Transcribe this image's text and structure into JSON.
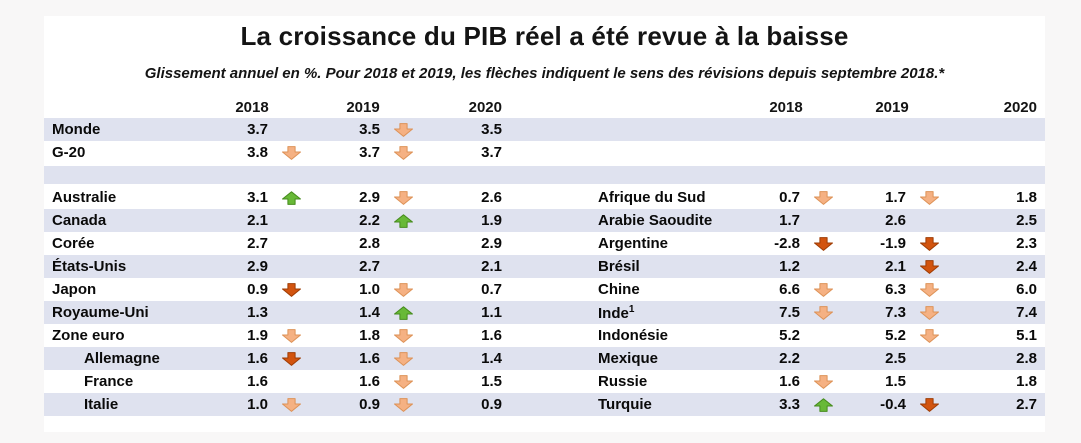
{
  "chart_data": {
    "type": "table",
    "title": "La croissance du PIB réel a été revue à la baisse",
    "subtitle": "Glissement annuel en %. Pour 2018 et 2019, les flèches indiquent le sens des révisions depuis septembre 2018.*",
    "columns": [
      "2018",
      "2019",
      "2020"
    ],
    "row_shade_color": "#dfe2ef",
    "arrow_styles": {
      "up": {
        "fill": "#68b937",
        "stroke": "#468c1d"
      },
      "down": {
        "fill": "#f5b183",
        "stroke": "#dd9257"
      },
      "down_strong": {
        "fill": "#d2540f",
        "stroke": "#9e3c04"
      }
    },
    "rows": [
      {
        "shaded": true,
        "left": {
          "label": "Monde",
          "values": [
            "3.7",
            "3.5",
            "3.5"
          ],
          "arrows": [
            null,
            "down",
            null
          ]
        },
        "right": null
      },
      {
        "shaded": false,
        "left": {
          "label": "G-20",
          "values": [
            "3.8",
            "3.7",
            "3.7"
          ],
          "arrows": [
            "down",
            "down",
            null
          ]
        },
        "right": null
      },
      {
        "shaded": true,
        "spacer": true
      },
      {
        "shaded": false,
        "left": {
          "label": "Australie",
          "values": [
            "3.1",
            "2.9",
            "2.6"
          ],
          "arrows": [
            "up",
            "down",
            null
          ]
        },
        "right": {
          "label": "Afrique du Sud",
          "values": [
            "0.7",
            "1.7",
            "1.8"
          ],
          "arrows": [
            "down",
            "down",
            null
          ]
        }
      },
      {
        "shaded": true,
        "left": {
          "label": "Canada",
          "values": [
            "2.1",
            "2.2",
            "1.9"
          ],
          "arrows": [
            null,
            "up",
            null
          ]
        },
        "right": {
          "label": "Arabie Saoudite",
          "values": [
            "1.7",
            "2.6",
            "2.5"
          ],
          "arrows": [
            null,
            null,
            null
          ]
        }
      },
      {
        "shaded": false,
        "left": {
          "label": "Corée",
          "values": [
            "2.7",
            "2.8",
            "2.9"
          ],
          "arrows": [
            null,
            null,
            null
          ]
        },
        "right": {
          "label": "Argentine",
          "values": [
            "-2.8",
            "-1.9",
            "2.3"
          ],
          "arrows": [
            "down_strong",
            "down_strong",
            null
          ]
        }
      },
      {
        "shaded": true,
        "left": {
          "label": "États-Unis",
          "values": [
            "2.9",
            "2.7",
            "2.1"
          ],
          "arrows": [
            null,
            null,
            null
          ]
        },
        "right": {
          "label": "Brésil",
          "values": [
            "1.2",
            "2.1",
            "2.4"
          ],
          "arrows": [
            null,
            "down_strong",
            null
          ]
        }
      },
      {
        "shaded": false,
        "left": {
          "label": "Japon",
          "values": [
            "0.9",
            "1.0",
            "0.7"
          ],
          "arrows": [
            "down_strong",
            "down",
            null
          ]
        },
        "right": {
          "label": "Chine",
          "values": [
            "6.6",
            "6.3",
            "6.0"
          ],
          "arrows": [
            "down",
            "down",
            null
          ]
        }
      },
      {
        "shaded": true,
        "left": {
          "label": "Royaume-Uni",
          "values": [
            "1.3",
            "1.4",
            "1.1"
          ],
          "arrows": [
            null,
            "up",
            null
          ]
        },
        "right": {
          "label": "Inde",
          "sup": "1",
          "values": [
            "7.5",
            "7.3",
            "7.4"
          ],
          "arrows": [
            "down",
            "down",
            null
          ]
        }
      },
      {
        "shaded": false,
        "left": {
          "label": "Zone euro",
          "values": [
            "1.9",
            "1.8",
            "1.6"
          ],
          "arrows": [
            "down",
            "down",
            null
          ]
        },
        "right": {
          "label": "Indonésie",
          "values": [
            "5.2",
            "5.2",
            "5.1"
          ],
          "arrows": [
            null,
            "down",
            null
          ]
        }
      },
      {
        "shaded": true,
        "left": {
          "label": "Allemagne",
          "indent": true,
          "values": [
            "1.6",
            "1.6",
            "1.4"
          ],
          "arrows": [
            "down_strong",
            "down",
            null
          ]
        },
        "right": {
          "label": "Mexique",
          "values": [
            "2.2",
            "2.5",
            "2.8"
          ],
          "arrows": [
            null,
            null,
            null
          ]
        }
      },
      {
        "shaded": false,
        "left": {
          "label": "France",
          "indent": true,
          "values": [
            "1.6",
            "1.6",
            "1.5"
          ],
          "arrows": [
            null,
            "down",
            null
          ]
        },
        "right": {
          "label": "Russie",
          "values": [
            "1.6",
            "1.5",
            "1.8"
          ],
          "arrows": [
            "down",
            null,
            null
          ]
        }
      },
      {
        "shaded": true,
        "left": {
          "label": "Italie",
          "indent": true,
          "values": [
            "1.0",
            "0.9",
            "0.9"
          ],
          "arrows": [
            "down",
            "down",
            null
          ]
        },
        "right": {
          "label": "Turquie",
          "values": [
            "3.3",
            "-0.4",
            "2.7"
          ],
          "arrows": [
            "up",
            "down_strong",
            null
          ]
        }
      }
    ]
  }
}
